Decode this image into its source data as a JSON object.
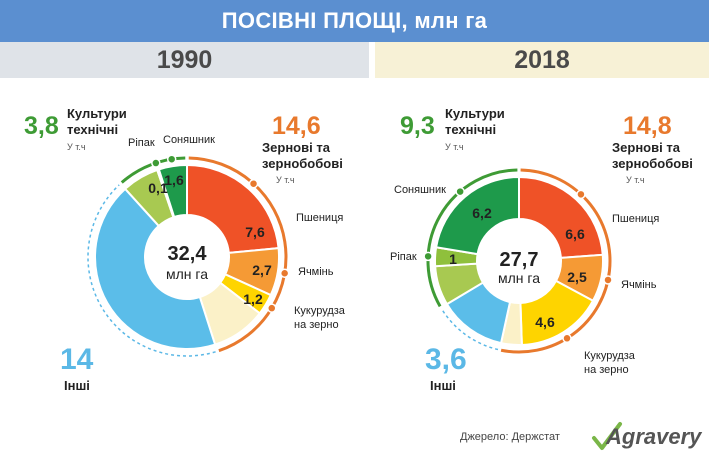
{
  "title": "ПОСІВНІ ПЛОЩІ, млн га",
  "source": "Джерело: Держстат",
  "brand": "Agravery",
  "chart_data": [
    {
      "type": "pie",
      "year": "1990",
      "total": "32,4",
      "total_unit": "млн га",
      "groups": {
        "technical": {
          "value": "3,8",
          "label_line1": "Культури",
          "label_line2": "технічні",
          "sub": "У т.ч"
        },
        "grain": {
          "value": "14,6",
          "label_line1": "Зернові та",
          "label_line2": "зернобобові",
          "sub": "У т.ч"
        },
        "other": {
          "value": "14",
          "label": "Інші"
        }
      },
      "segments": [
        {
          "name": "Пшениця",
          "value": 7.6,
          "display": "7,6",
          "color": "#ef5227"
        },
        {
          "name": "Ячмінь",
          "value": 2.7,
          "display": "2,7",
          "color": "#f59a35"
        },
        {
          "name": "Кукурудза на зерно",
          "name_line1": "Кукурудза",
          "name_line2": "на зерно",
          "value": 1.2,
          "display": "1,2",
          "color": "#fed400"
        },
        {
          "name": "Інші зернові",
          "value": 3.1,
          "display": "",
          "color": "#fbf1c8"
        },
        {
          "name": "Інші",
          "value": 14,
          "display": "",
          "color": "#5bbde9"
        },
        {
          "name": "Інші технічні",
          "value": 2.1,
          "display": "",
          "color": "#a8c951"
        },
        {
          "name": "Ріпак",
          "value": 0.1,
          "display": "0,1",
          "color": "#8fc03c"
        },
        {
          "name": "Соняшник",
          "value": 1.6,
          "display": "1,6",
          "color": "#1e9a4b"
        }
      ]
    },
    {
      "type": "pie",
      "year": "2018",
      "total": "27,7",
      "total_unit": "млн га",
      "groups": {
        "technical": {
          "value": "9,3",
          "label_line1": "Культури",
          "label_line2": "технічні",
          "sub": "У т.ч"
        },
        "grain": {
          "value": "14,8",
          "label_line1": "Зернові та",
          "label_line2": "зернобобові",
          "sub": "У т.ч"
        },
        "other": {
          "value": "3,6",
          "label": "Інші"
        }
      },
      "segments": [
        {
          "name": "Пшениця",
          "value": 6.6,
          "display": "6,6",
          "color": "#ef5227"
        },
        {
          "name": "Ячмінь",
          "value": 2.5,
          "display": "2,5",
          "color": "#f59a35"
        },
        {
          "name": "Кукурудза на зерно",
          "name_line1": "Кукурудза",
          "name_line2": "на зерно",
          "value": 4.6,
          "display": "4,6",
          "color": "#fed400"
        },
        {
          "name": "Інші зернові",
          "value": 1.1,
          "display": "",
          "color": "#fbf1c8"
        },
        {
          "name": "Інші",
          "value": 3.6,
          "display": "",
          "color": "#5bbde9"
        },
        {
          "name": "Інші технічні",
          "value": 2.1,
          "display": "",
          "color": "#a8c951"
        },
        {
          "name": "Ріпак",
          "value": 1,
          "display": "1",
          "color": "#8fc03c"
        },
        {
          "name": "Соняшник",
          "value": 6.2,
          "display": "6,2",
          "color": "#1e9a4b"
        }
      ]
    }
  ]
}
